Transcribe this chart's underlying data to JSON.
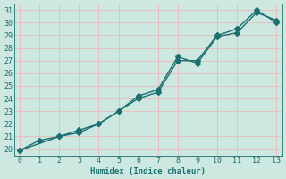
{
  "line1_x": [
    0,
    1,
    2,
    3,
    4,
    5,
    6,
    7,
    8,
    9,
    10,
    11,
    12,
    13
  ],
  "line1_y": [
    19.9,
    20.7,
    21.0,
    21.5,
    22.0,
    23.0,
    24.0,
    24.5,
    27.0,
    27.0,
    29.0,
    29.5,
    31.0,
    30.0
  ],
  "line2_x": [
    0,
    2,
    3,
    4,
    5,
    6,
    7,
    8,
    9,
    10,
    11,
    12,
    13
  ],
  "line2_y": [
    19.9,
    21.0,
    21.3,
    22.0,
    23.0,
    24.2,
    24.7,
    27.3,
    26.8,
    28.9,
    29.2,
    30.8,
    30.2
  ],
  "color": "#1a7070",
  "bg_color": "#cce8e0",
  "grid_major_color": "#e8c0c0",
  "grid_minor_color": "#ddd0d0",
  "xlabel": "Humidex (Indice chaleur)",
  "xlim": [
    -0.3,
    13.3
  ],
  "ylim": [
    19.5,
    31.5
  ],
  "xticks": [
    0,
    1,
    2,
    3,
    4,
    5,
    6,
    7,
    8,
    9,
    10,
    11,
    12,
    13
  ],
  "yticks": [
    20,
    21,
    22,
    23,
    24,
    25,
    26,
    27,
    28,
    29,
    30,
    31
  ],
  "markersize": 3,
  "linewidth": 1.0
}
